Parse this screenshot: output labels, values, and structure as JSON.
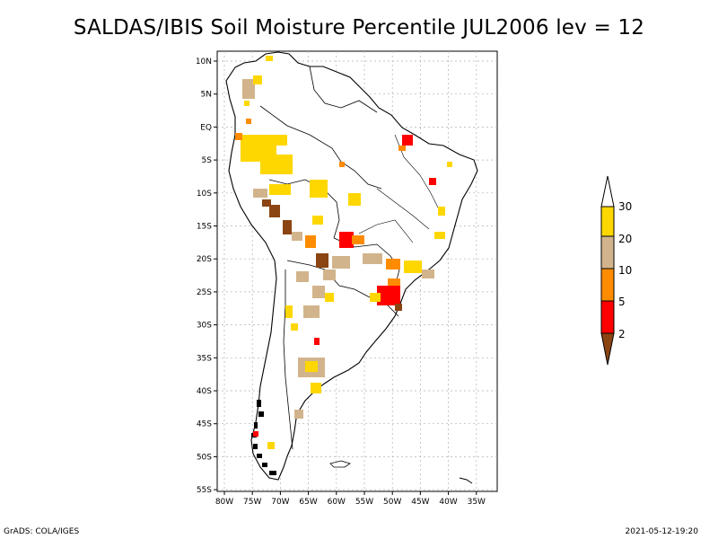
{
  "title": "SALDAS/IBIS Soil Moisture Percentile JUL2006 lev = 12",
  "axes": {
    "lat_labels": [
      "10N",
      "5N",
      "EQ",
      "5S",
      "10S",
      "15S",
      "20S",
      "25S",
      "30S",
      "35S",
      "40S",
      "45S",
      "50S",
      "55S"
    ],
    "lon_labels": [
      "80W",
      "75W",
      "70W",
      "65W",
      "60W",
      "55W",
      "50W",
      "45W",
      "40W",
      "35W"
    ]
  },
  "legend": {
    "bins": [
      {
        "label": "30",
        "color": "#ffd700"
      },
      {
        "label": "20",
        "color": "#d2b48c"
      },
      {
        "label": "10",
        "color": "#ff8c00"
      },
      {
        "label": "5",
        "color": "#ff0000"
      },
      {
        "label": "2",
        "color": "#8b4513"
      }
    ]
  },
  "footer": {
    "left": "GrADS: COLA/IGES",
    "right": "2021-05-12-19:20"
  }
}
